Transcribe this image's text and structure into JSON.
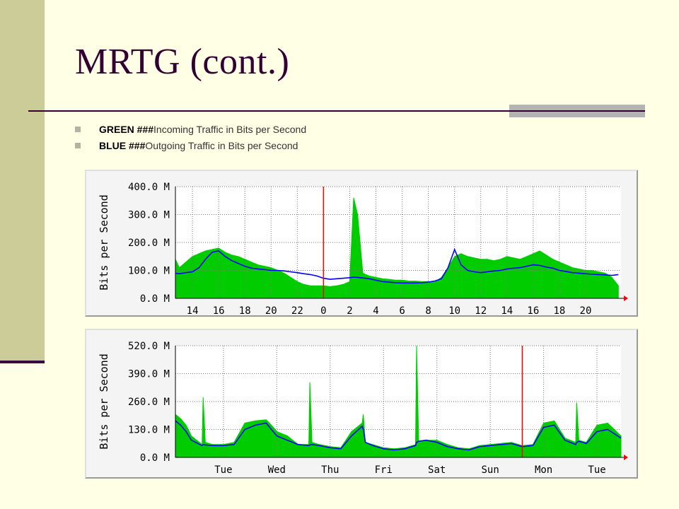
{
  "slide": {
    "title": "MRTG (cont.)",
    "bullets": [
      {
        "strong": "GREEN ###",
        "text": "Incoming Traffic in Bits per Second"
      },
      {
        "strong": "BLUE ###",
        "text": "Outgoing Traffic in Bits per Second"
      }
    ]
  },
  "colors": {
    "incoming": "#00cc00",
    "outgoing": "#0000ff",
    "marker": "#ff0000",
    "grid": "#777777"
  },
  "chart_data": [
    {
      "type": "area",
      "title": "",
      "ylabel": "Bits per Second",
      "ylim": [
        0,
        400
      ],
      "yticks": [
        "0.0 M",
        "100.0 M",
        "200.0 M",
        "300.0 M",
        "400.0 M"
      ],
      "xticks": [
        "14",
        "16",
        "18",
        "20",
        "22",
        "0",
        "2",
        "4",
        "6",
        "8",
        "10",
        "12",
        "14",
        "16",
        "18",
        "20"
      ],
      "x_hours": [
        14,
        16,
        18,
        20,
        22,
        24,
        26,
        28,
        30,
        32,
        34,
        36,
        38,
        40,
        42,
        44
      ],
      "x_range": [
        12.7,
        46.7
      ],
      "markers_x": [
        24
      ],
      "series": [
        {
          "name": "GREEN",
          "x": [
            12.7,
            13,
            13.5,
            14,
            14.5,
            15,
            15.5,
            16,
            16.5,
            17,
            17.5,
            18,
            18.5,
            19,
            19.5,
            20,
            20.5,
            21,
            21.5,
            22,
            22.5,
            23,
            23.5,
            24,
            24.5,
            25,
            25.5,
            26,
            26.3,
            26.6,
            27,
            27.5,
            28,
            28.5,
            29,
            29.5,
            30,
            30.5,
            31,
            31.5,
            32,
            32.5,
            33,
            33.5,
            34,
            34.5,
            35,
            35.5,
            36,
            36.5,
            37,
            37.5,
            38,
            38.5,
            39,
            39.5,
            40,
            40.5,
            41,
            41.5,
            42,
            42.5,
            43,
            43.5,
            44,
            44.5,
            45,
            45.5,
            46,
            46.5
          ],
          "values": [
            140,
            110,
            130,
            150,
            160,
            170,
            175,
            180,
            165,
            155,
            150,
            140,
            130,
            120,
            115,
            110,
            100,
            90,
            75,
            60,
            50,
            45,
            45,
            45,
            42,
            45,
            50,
            60,
            360,
            300,
            90,
            80,
            75,
            70,
            68,
            65,
            65,
            62,
            62,
            60,
            60,
            58,
            75,
            110,
            150,
            160,
            150,
            145,
            140,
            140,
            135,
            140,
            150,
            145,
            140,
            150,
            160,
            170,
            155,
            140,
            130,
            120,
            110,
            105,
            100,
            100,
            95,
            90,
            75,
            45
          ]
        },
        {
          "name": "BLUE",
          "x": [
            12.7,
            13,
            13.5,
            14,
            14.5,
            15,
            15.5,
            16,
            16.5,
            17,
            17.5,
            18,
            18.5,
            19,
            19.5,
            20,
            20.5,
            21,
            21.5,
            22,
            22.5,
            23,
            23.5,
            24,
            24.5,
            25,
            25.5,
            26,
            26.3,
            26.6,
            27,
            27.5,
            28,
            28.5,
            29,
            29.5,
            30,
            30.5,
            31,
            31.5,
            32,
            32.5,
            33,
            33.5,
            34,
            34.5,
            35,
            35.5,
            36,
            36.5,
            37,
            37.5,
            38,
            38.5,
            39,
            39.5,
            40,
            40.5,
            41,
            41.5,
            42,
            42.5,
            43,
            43.5,
            44,
            44.5,
            45,
            45.5,
            46,
            46.5
          ],
          "values": [
            90,
            88,
            92,
            95,
            110,
            140,
            165,
            170,
            150,
            135,
            125,
            115,
            108,
            105,
            103,
            100,
            100,
            98,
            95,
            92,
            88,
            85,
            80,
            72,
            68,
            70,
            72,
            74,
            76,
            75,
            73,
            70,
            65,
            60,
            58,
            56,
            55,
            55,
            55,
            56,
            58,
            62,
            70,
            110,
            175,
            120,
            100,
            95,
            92,
            95,
            98,
            100,
            105,
            108,
            110,
            115,
            120,
            118,
            112,
            108,
            100,
            96,
            92,
            90,
            88,
            86,
            85,
            84,
            82,
            85
          ]
        }
      ]
    },
    {
      "type": "area",
      "title": "",
      "ylabel": "Bits per Second",
      "ylim": [
        0,
        520
      ],
      "yticks": [
        "0.0 M",
        "130.0 M",
        "260.0 M",
        "390.0 M",
        "520.0 M"
      ],
      "xticks": [
        "Tue",
        "Wed",
        "Thu",
        "Fri",
        "Sat",
        "Sun",
        "Mon",
        "Tue"
      ],
      "x_days": [
        0,
        1,
        2,
        3,
        4,
        5,
        6,
        7
      ],
      "x_range": [
        -0.9,
        7.45
      ],
      "markers_x": [
        5.6
      ],
      "series": [
        {
          "name": "GREEN",
          "x": [
            -0.9,
            -0.8,
            -0.7,
            -0.6,
            -0.4,
            -0.38,
            -0.34,
            -0.2,
            0,
            0.2,
            0.4,
            0.6,
            0.8,
            0.9,
            1.0,
            1.1,
            1.2,
            1.4,
            1.6,
            1.62,
            1.66,
            1.8,
            2.0,
            2.2,
            2.4,
            2.6,
            2.62,
            2.66,
            2.8,
            3.0,
            3.2,
            3.4,
            3.6,
            3.62,
            3.66,
            3.8,
            4.0,
            4.2,
            4.4,
            4.6,
            4.8,
            5.0,
            5.2,
            5.4,
            5.6,
            5.8,
            6.0,
            6.2,
            6.4,
            6.6,
            6.62,
            6.66,
            6.8,
            7.0,
            7.2,
            7.45
          ],
          "values": [
            200,
            180,
            150,
            100,
            60,
            280,
            70,
            60,
            60,
            70,
            160,
            170,
            175,
            150,
            120,
            110,
            100,
            60,
            60,
            350,
            70,
            60,
            50,
            45,
            120,
            160,
            200,
            70,
            60,
            45,
            40,
            45,
            60,
            520,
            70,
            80,
            80,
            60,
            45,
            40,
            55,
            60,
            65,
            70,
            55,
            60,
            160,
            170,
            90,
            70,
            255,
            80,
            70,
            150,
            160,
            100
          ]
        },
        {
          "name": "BLUE",
          "x": [
            -0.9,
            -0.8,
            -0.7,
            -0.6,
            -0.4,
            -0.38,
            -0.34,
            -0.2,
            0,
            0.2,
            0.4,
            0.6,
            0.8,
            0.9,
            1.0,
            1.1,
            1.2,
            1.4,
            1.6,
            1.62,
            1.66,
            1.8,
            2.0,
            2.2,
            2.4,
            2.6,
            2.62,
            2.66,
            2.8,
            3.0,
            3.2,
            3.4,
            3.6,
            3.62,
            3.66,
            3.8,
            4.0,
            4.2,
            4.4,
            4.6,
            4.8,
            5.0,
            5.2,
            5.4,
            5.6,
            5.8,
            6.0,
            6.2,
            6.4,
            6.6,
            6.62,
            6.66,
            6.8,
            7.0,
            7.2,
            7.45
          ],
          "values": [
            170,
            150,
            120,
            80,
            55,
            60,
            58,
            55,
            55,
            60,
            130,
            150,
            160,
            130,
            100,
            90,
            80,
            60,
            55,
            58,
            60,
            55,
            45,
            40,
            100,
            145,
            130,
            70,
            55,
            40,
            35,
            40,
            55,
            70,
            75,
            80,
            70,
            50,
            40,
            35,
            50,
            55,
            60,
            65,
            50,
            55,
            140,
            150,
            80,
            60,
            70,
            75,
            65,
            120,
            130,
            90
          ]
        }
      ]
    }
  ]
}
